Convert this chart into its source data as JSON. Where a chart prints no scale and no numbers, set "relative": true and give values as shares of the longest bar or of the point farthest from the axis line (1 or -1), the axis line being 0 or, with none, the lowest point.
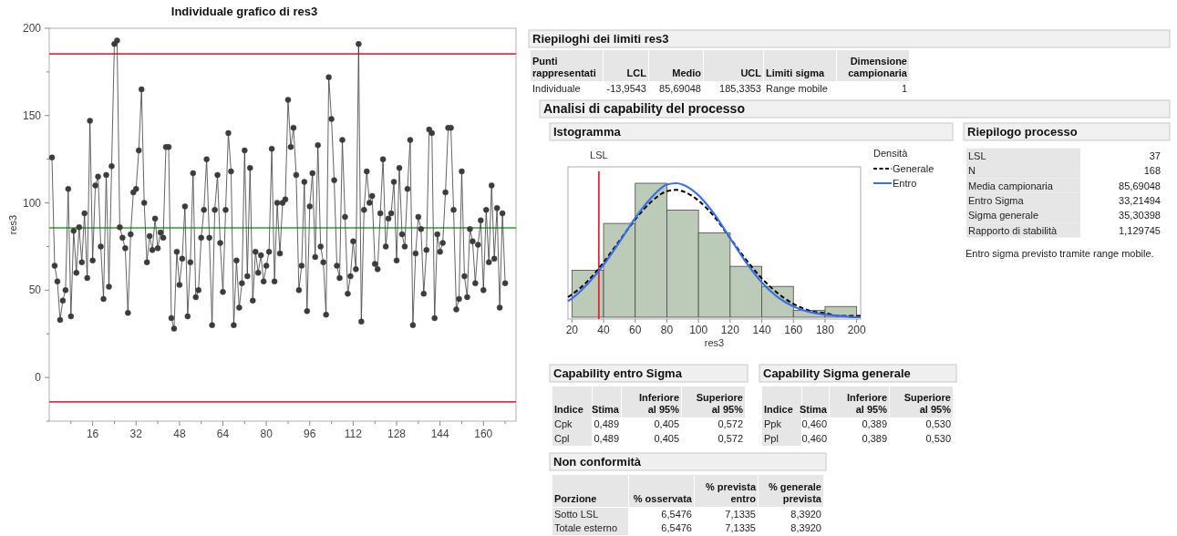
{
  "chart_data": [
    {
      "type": "line",
      "title": "Individuale grafico di res3",
      "ylabel": "res3",
      "xlim": [
        0,
        172
      ],
      "ylim": [
        -25,
        200
      ],
      "xticks": [
        {
          "value": 8,
          "label": null
        },
        16,
        {
          "value": 24,
          "label": null
        },
        32,
        {
          "value": 40,
          "label": null
        },
        48,
        {
          "value": 56,
          "label": null
        },
        64,
        {
          "value": 72,
          "label": null
        },
        80,
        {
          "value": 88,
          "label": null
        },
        96,
        {
          "value": 104,
          "label": null
        },
        112,
        {
          "value": 120,
          "label": null
        },
        128,
        {
          "value": 136,
          "label": null
        },
        144,
        {
          "value": 152,
          "label": null
        },
        160,
        {
          "value": 168,
          "label": null
        }
      ],
      "yticks": [
        {
          "value": -25,
          "label": null
        },
        0,
        {
          "value": 25,
          "label": null
        },
        50,
        {
          "value": 75,
          "label": null
        },
        100,
        {
          "value": 125,
          "label": null
        },
        150,
        {
          "value": 175,
          "label": null
        },
        200
      ],
      "marker": "circle",
      "color": "#3c3c3c",
      "x": [
        1,
        2,
        3,
        4,
        5,
        6,
        7,
        8,
        9,
        10,
        11,
        12,
        13,
        14,
        15,
        16,
        17,
        18,
        19,
        20,
        21,
        22,
        23,
        24,
        25,
        26,
        27,
        28,
        29,
        30,
        31,
        32,
        33,
        34,
        35,
        36,
        37,
        38,
        39,
        40,
        41,
        42,
        43,
        44,
        45,
        46,
        47,
        48,
        49,
        50,
        51,
        52,
        53,
        54,
        55,
        56,
        57,
        58,
        59,
        60,
        61,
        62,
        63,
        64,
        65,
        66,
        67,
        68,
        69,
        70,
        71,
        72,
        73,
        74,
        75,
        76,
        77,
        78,
        79,
        80,
        81,
        82,
        83,
        84,
        85,
        86,
        87,
        88,
        89,
        90,
        91,
        92,
        93,
        94,
        95,
        96,
        97,
        98,
        99,
        100,
        101,
        102,
        103,
        104,
        105,
        106,
        107,
        108,
        109,
        110,
        111,
        112,
        113,
        114,
        115,
        116,
        117,
        118,
        119,
        120,
        121,
        122,
        123,
        124,
        125,
        126,
        127,
        128,
        129,
        130,
        131,
        132,
        133,
        134,
        135,
        136,
        137,
        138,
        139,
        140,
        141,
        142,
        143,
        144,
        145,
        146,
        147,
        148,
        149,
        150,
        151,
        152,
        153,
        154,
        155,
        156,
        157,
        158,
        159,
        160,
        161,
        162,
        163,
        164,
        165,
        166,
        167,
        168
      ],
      "values": [
        126,
        64,
        55,
        33,
        44,
        50,
        108,
        35,
        84,
        60,
        86,
        66,
        94,
        57,
        147,
        67,
        110,
        115,
        75,
        45,
        116,
        52,
        121,
        191,
        193,
        86,
        80,
        74,
        37,
        82,
        106,
        108,
        130,
        165,
        100,
        66,
        81,
        73,
        91,
        74,
        83,
        80,
        132,
        132,
        34,
        28,
        72,
        53,
        68,
        98,
        35,
        66,
        117,
        46,
        50,
        80,
        96,
        125,
        80,
        30,
        96,
        116,
        77,
        49,
        96,
        140,
        118,
        30,
        67,
        40,
        54,
        130,
        58,
        120,
        44,
        72,
        60,
        70,
        55,
        64,
        72,
        131,
        55,
        100,
        71,
        100,
        102,
        159,
        132,
        143,
        116,
        50,
        64,
        112,
        38,
        98,
        117,
        69,
        133,
        75,
        66,
        36,
        172,
        148,
        113,
        64,
        57,
        136,
        92,
        48,
        58,
        78,
        62,
        191,
        32,
        96,
        118,
        100,
        104,
        65,
        62,
        94,
        125,
        75,
        91,
        94,
        112,
        67,
        120,
        82,
        75,
        108,
        136,
        30,
        71,
        92,
        85,
        48,
        73,
        142,
        140,
        34,
        82,
        72,
        77,
        106,
        143,
        143,
        96,
        39,
        45,
        118,
        58,
        46,
        85,
        78,
        54,
        76,
        90,
        50,
        96,
        66,
        110,
        68,
        97,
        40,
        94,
        54
      ],
      "ref_lines": [
        {
          "axis": "y",
          "value": 185.3353,
          "color": "#d9334a"
        },
        {
          "axis": "y",
          "value": 85.69048,
          "color": "#2ca02c"
        },
        {
          "axis": "y",
          "value": -13.9543,
          "color": "#d9334a"
        }
      ]
    },
    {
      "type": "other",
      "title": "Riepiloghi dei limiti res3",
      "categories": [
        "Punti rappresentati",
        "LCL",
        "Medio",
        "UCL",
        "Limiti sigma",
        "Dimensione campionaria"
      ],
      "y_categories": [
        "Individuale"
      ],
      "cell_labels": [
        [
          "-13,9543",
          "85,69048",
          "185,3353",
          "Range mobile",
          "1"
        ]
      ]
    },
    {
      "type": "other",
      "title": "Analisi di capability del processo"
    },
    {
      "type": "histogram",
      "title": "Istogramma",
      "relative": true,
      "xlabel": "res3",
      "bins": [
        20,
        40,
        60,
        80,
        100,
        120,
        140,
        160,
        180,
        200
      ],
      "values": [
        0.35,
        0.7,
        1,
        0.8,
        0.63,
        0.38,
        0.23,
        0.05,
        0.08
      ],
      "color": "#bccab8",
      "xlim": [
        17.5,
        202.5
      ],
      "xticks": [
        20,
        40,
        60,
        80,
        100,
        120,
        140,
        160,
        180,
        200
      ],
      "legend": "right",
      "legend_title": "Densità",
      "ref_lines": [
        {
          "axis": "x",
          "value": 37,
          "label": "LSL",
          "color": "#e0253a"
        }
      ],
      "series": [
        {
          "type": "line",
          "name": "Generale",
          "color": "#000000",
          "line_style": "dashed",
          "x": [
            17.5,
            20,
            30,
            40,
            50,
            60,
            70,
            80,
            86,
            90,
            100,
            110,
            120,
            130,
            140,
            150,
            160,
            170,
            180,
            190,
            200,
            202.5
          ],
          "values": [
            0.15,
            0.17,
            0.27,
            0.41,
            0.57,
            0.73,
            0.86,
            0.94,
            0.95,
            0.94,
            0.87,
            0.75,
            0.59,
            0.43,
            0.29,
            0.18,
            0.1,
            0.05,
            0.03,
            0.01,
            0.01,
            0.01
          ]
        },
        {
          "type": "line",
          "name": "Entro",
          "color": "#3a6ee8",
          "x": [
            17.5,
            20,
            30,
            40,
            50,
            60,
            70,
            80,
            86,
            90,
            100,
            110,
            120,
            130,
            140,
            150,
            160,
            170,
            180,
            190,
            200,
            202.5
          ],
          "values": [
            0.12,
            0.14,
            0.25,
            0.39,
            0.56,
            0.74,
            0.89,
            0.99,
            1,
            0.99,
            0.91,
            0.77,
            0.59,
            0.41,
            0.26,
            0.15,
            0.08,
            0.04,
            0.02,
            0.01,
            0,
            0
          ]
        }
      ]
    },
    {
      "type": "other",
      "title": "Riepilogo processo",
      "y_categories": [
        "LSL",
        "N",
        "Media campionaria",
        "Entro Sigma",
        "Sigma generale",
        "Rapporto di stabilità"
      ],
      "cell_labels": [
        [
          "37"
        ],
        [
          "168"
        ],
        [
          "85,69048"
        ],
        [
          "33,21494"
        ],
        [
          "35,30398"
        ],
        [
          "1,129745"
        ]
      ],
      "annotations": [
        "Entro sigma previsto tramite range mobile."
      ]
    },
    {
      "type": "other",
      "title": "Capability entro Sigma",
      "categories": [
        "Indice",
        "Stima",
        "Inferiore al 95%",
        "Superiore al 95%"
      ],
      "y_categories": [
        "Cpk",
        "Cpl"
      ],
      "cell_labels": [
        [
          "0,489",
          "0,405",
          "0,572"
        ],
        [
          "0,489",
          "0,405",
          "0,572"
        ]
      ]
    },
    {
      "type": "other",
      "title": "Capability Sigma generale",
      "categories": [
        "Indice",
        "Stima",
        "Inferiore al 95%",
        "Superiore al 95%"
      ],
      "y_categories": [
        "Ppk",
        "Ppl"
      ],
      "cell_labels": [
        [
          "0,460",
          "0,389",
          "0,530"
        ],
        [
          "0,460",
          "0,389",
          "0,530"
        ]
      ]
    },
    {
      "type": "other",
      "title": "Non conformità",
      "categories": [
        "Porzione",
        "% osservata",
        "% prevista entro",
        "% generale prevista"
      ],
      "y_categories": [
        "Sotto LSL",
        "Totale esterno"
      ],
      "cell_labels": [
        [
          "6,5476",
          "7,1335",
          "8,3920"
        ],
        [
          "6,5476",
          "7,1335",
          "8,3920"
        ]
      ]
    }
  ]
}
